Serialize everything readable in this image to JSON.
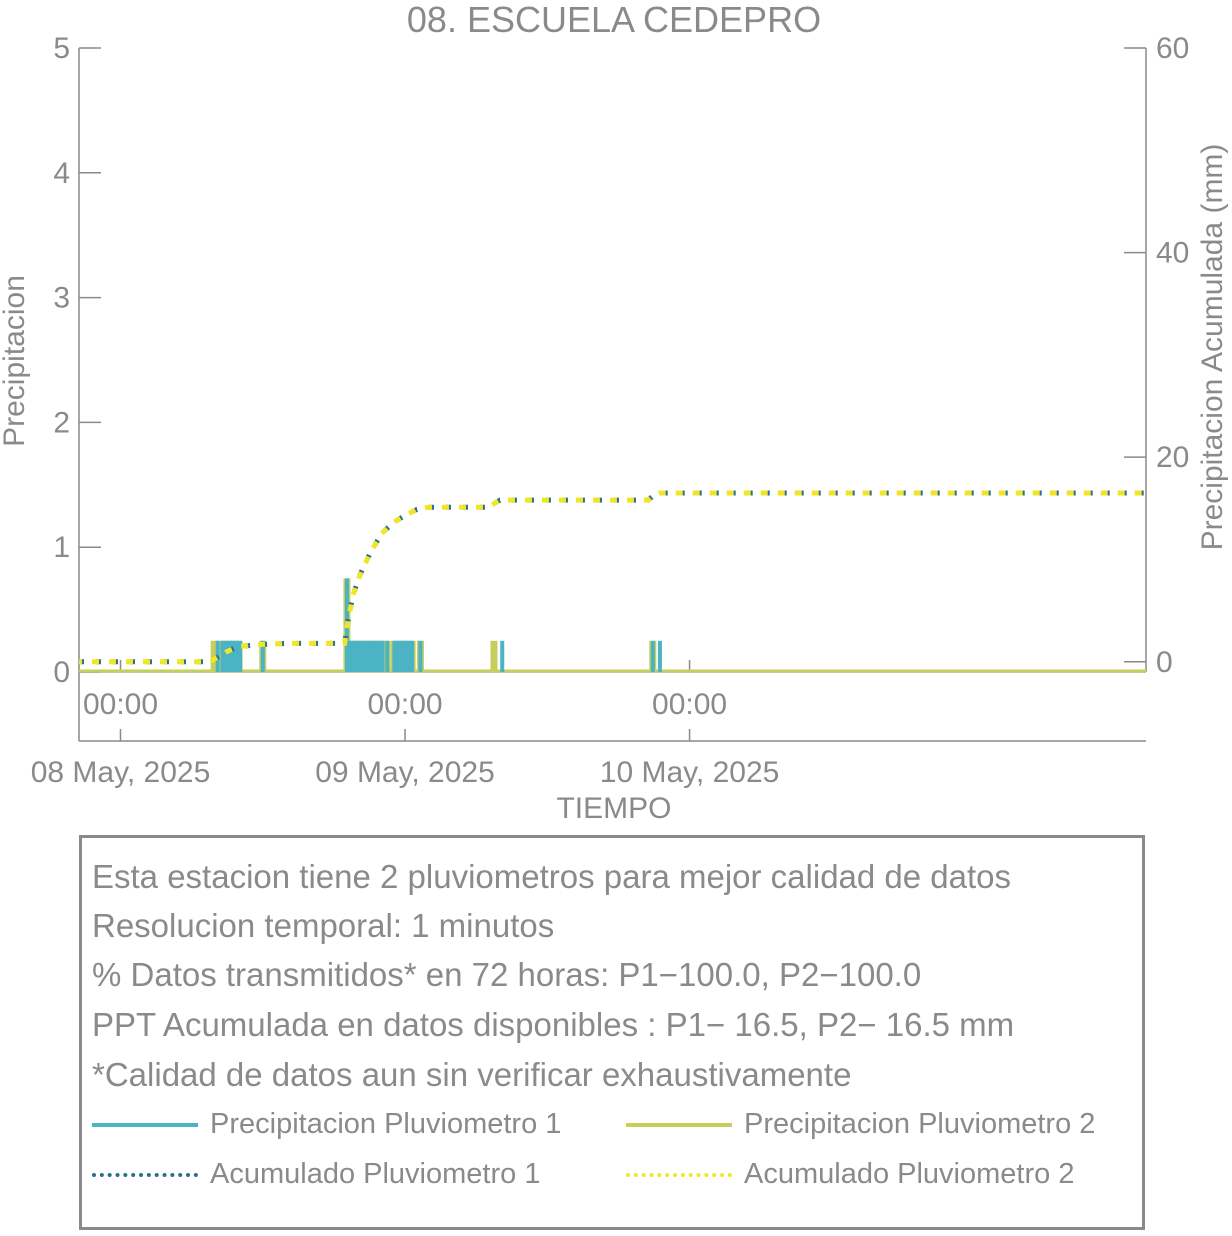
{
  "chart_data": {
    "type": "bar",
    "title": "08. ESCUELA CEDEPRO",
    "xlabel": "TIEMPO",
    "ylabel": "Precipitacion",
    "y2label": "Precipitacion Acumulada (mm)",
    "x_unit": "hours since 08 May 2025 00:00 (axis shows dates)",
    "xlim": [
      -3.5,
      86.5
    ],
    "ylim": [
      0,
      5
    ],
    "y2lim": [
      -1,
      60
    ],
    "yticks": [
      0,
      1,
      2,
      3,
      4,
      5
    ],
    "y2ticks": [
      0,
      20,
      40,
      60
    ],
    "xticks": [
      {
        "time": "00:00",
        "date": "08 May, 2025",
        "hour": 0
      },
      {
        "time": "00:00",
        "date": "09 May, 2025",
        "hour": 24
      },
      {
        "time": "00:00",
        "date": "10 May, 2025",
        "hour": 48
      }
    ],
    "grid": false,
    "series": [
      {
        "name": "Precipitacion Pluviometro 1",
        "kind": "bar",
        "color": "#4bb3c4",
        "points": [
          [
            8.2,
            0.25
          ],
          [
            8.6,
            0.25
          ],
          [
            8.9,
            0.25
          ],
          [
            9.2,
            0.25
          ],
          [
            9.5,
            0.25
          ],
          [
            9.8,
            0.25
          ],
          [
            10.1,
            0.25
          ],
          [
            12.0,
            0.25
          ],
          [
            19.1,
            0.75
          ],
          [
            19.4,
            0.25
          ],
          [
            19.7,
            0.25
          ],
          [
            20.0,
            0.25
          ],
          [
            20.3,
            0.25
          ],
          [
            20.6,
            0.25
          ],
          [
            20.9,
            0.25
          ],
          [
            21.2,
            0.25
          ],
          [
            21.5,
            0.25
          ],
          [
            21.8,
            0.25
          ],
          [
            22.1,
            0.25
          ],
          [
            22.5,
            0.25
          ],
          [
            23.1,
            0.25
          ],
          [
            23.4,
            0.25
          ],
          [
            23.7,
            0.25
          ],
          [
            24.0,
            0.25
          ],
          [
            24.3,
            0.25
          ],
          [
            24.6,
            0.25
          ],
          [
            25.3,
            0.25
          ],
          [
            32.2,
            0.25
          ],
          [
            44.9,
            0.25
          ],
          [
            45.5,
            0.25
          ]
        ]
      },
      {
        "name": "Precipitacion Pluviometro 2",
        "kind": "bar",
        "color": "#c7ce5c",
        "points": [
          [
            7.9,
            0.25
          ],
          [
            8.2,
            0.25
          ],
          [
            8.5,
            0.25
          ],
          [
            8.8,
            0.25
          ],
          [
            9.1,
            0.25
          ],
          [
            9.4,
            0.25
          ],
          [
            9.7,
            0.25
          ],
          [
            10.0,
            0.25
          ],
          [
            12.0,
            0.25
          ],
          [
            19.1,
            0.75
          ],
          [
            19.4,
            0.25
          ],
          [
            19.7,
            0.25
          ],
          [
            20.0,
            0.25
          ],
          [
            20.3,
            0.25
          ],
          [
            20.6,
            0.25
          ],
          [
            20.9,
            0.25
          ],
          [
            21.2,
            0.25
          ],
          [
            21.5,
            0.25
          ],
          [
            21.8,
            0.25
          ],
          [
            22.1,
            0.25
          ],
          [
            22.5,
            0.25
          ],
          [
            23.1,
            0.25
          ],
          [
            23.4,
            0.25
          ],
          [
            23.7,
            0.25
          ],
          [
            24.0,
            0.25
          ],
          [
            24.3,
            0.25
          ],
          [
            24.6,
            0.25
          ],
          [
            25.3,
            0.25
          ],
          [
            31.5,
            0.25
          ],
          [
            44.9,
            0.25
          ]
        ]
      },
      {
        "name": "Acumulado Pluviometro 1",
        "kind": "dotted-line",
        "color": "#2a7090",
        "points": [
          [
            -3.5,
            0
          ],
          [
            6.0,
            0
          ],
          [
            7.5,
            0
          ],
          [
            8.3,
            0.5
          ],
          [
            9.0,
            1.0
          ],
          [
            10.0,
            1.5
          ],
          [
            12.0,
            1.7
          ],
          [
            14.0,
            1.8
          ],
          [
            18.9,
            1.8
          ],
          [
            19.2,
            4.0
          ],
          [
            19.6,
            6.5
          ],
          [
            20.2,
            8.5
          ],
          [
            21.0,
            10.5
          ],
          [
            22.0,
            12.5
          ],
          [
            23.0,
            13.6
          ],
          [
            24.0,
            14.3
          ],
          [
            25.0,
            14.9
          ],
          [
            26.0,
            15.1
          ],
          [
            31.0,
            15.1
          ],
          [
            32.0,
            15.8
          ],
          [
            41.0,
            15.8
          ],
          [
            44.5,
            15.8
          ],
          [
            45.0,
            16.3
          ],
          [
            45.5,
            16.5
          ],
          [
            86.5,
            16.5
          ]
        ]
      },
      {
        "name": "Acumulado Pluviometro 2",
        "kind": "dotted-line",
        "color": "#f0e628",
        "points": [
          [
            -3.5,
            0
          ],
          [
            6.0,
            0
          ],
          [
            7.5,
            0
          ],
          [
            8.3,
            0.5
          ],
          [
            9.0,
            1.0
          ],
          [
            10.0,
            1.5
          ],
          [
            12.0,
            1.7
          ],
          [
            14.0,
            1.8
          ],
          [
            18.9,
            1.8
          ],
          [
            19.2,
            4.0
          ],
          [
            19.6,
            6.5
          ],
          [
            20.2,
            8.5
          ],
          [
            21.0,
            10.5
          ],
          [
            22.0,
            12.5
          ],
          [
            23.0,
            13.6
          ],
          [
            24.0,
            14.3
          ],
          [
            25.0,
            14.9
          ],
          [
            26.0,
            15.1
          ],
          [
            31.0,
            15.1
          ],
          [
            32.0,
            15.8
          ],
          [
            41.0,
            15.8
          ],
          [
            44.5,
            15.8
          ],
          [
            45.0,
            16.3
          ],
          [
            45.5,
            16.5
          ],
          [
            86.5,
            16.5
          ]
        ]
      }
    ]
  },
  "info": {
    "lines": [
      "Esta estacion tiene 2 pluviometros para mejor calidad de datos",
      "Resolucion temporal: 1 minutos",
      "% Datos transmitidos* en 72 horas: P1−100.0, P2−100.0",
      "PPT Acumulada en datos disponibles : P1− 16.5, P2− 16.5 mm",
      "*Calidad de datos aun sin verificar exhaustivamente"
    ]
  }
}
